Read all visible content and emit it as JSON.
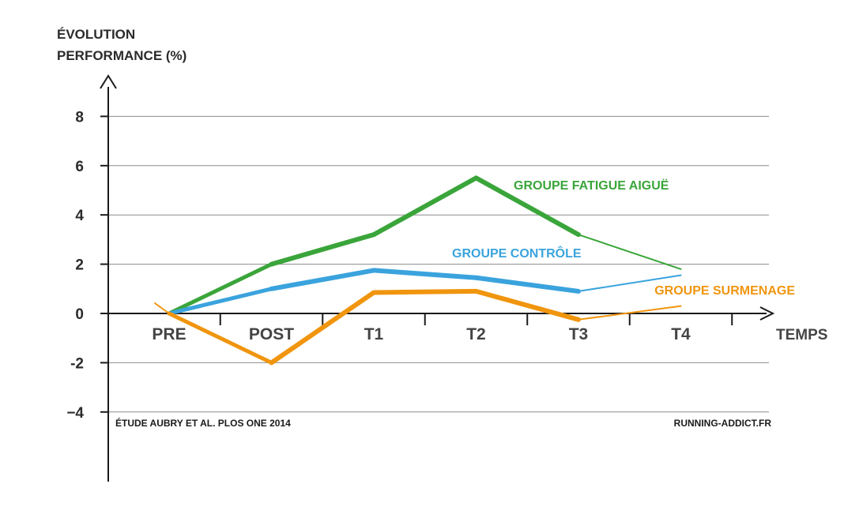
{
  "chart_data": {
    "type": "line",
    "ylabel_line1": "ÉVOLUTION",
    "ylabel_line2": "PERFORMANCE (%)",
    "xlabel": "TEMPS",
    "categories": [
      "PRE",
      "POST",
      "T1",
      "T2",
      "T3",
      "T4"
    ],
    "ylim": [
      -4,
      8
    ],
    "yticks": [
      8,
      6,
      4,
      2,
      0,
      -4
    ],
    "ytick_labels": [
      "8",
      "6",
      "4",
      "2",
      "0",
      "−4"
    ],
    "extra_ytick": -2,
    "extra_ytick_label": "-2",
    "grid": true,
    "series": [
      {
        "name": "GROUPE FATIGUE AIGUË",
        "color": "#3aa53a",
        "values": [
          0,
          2.0,
          3.2,
          5.5,
          3.2,
          1.8
        ]
      },
      {
        "name": "GROUPE CONTRÔLE",
        "color": "#3aa3dd",
        "values": [
          0,
          1.0,
          1.75,
          1.45,
          0.9,
          1.55
        ]
      },
      {
        "name": "GROUPE SURMENAGE",
        "color": "#f0950e",
        "values": [
          0,
          -2.0,
          0.85,
          0.9,
          -0.25,
          0.3
        ]
      }
    ],
    "source_note": "ÉTUDE AUBRY ET AL. PLOS ONE 2014",
    "site_note": "RUNNING-ADDICT.FR"
  }
}
